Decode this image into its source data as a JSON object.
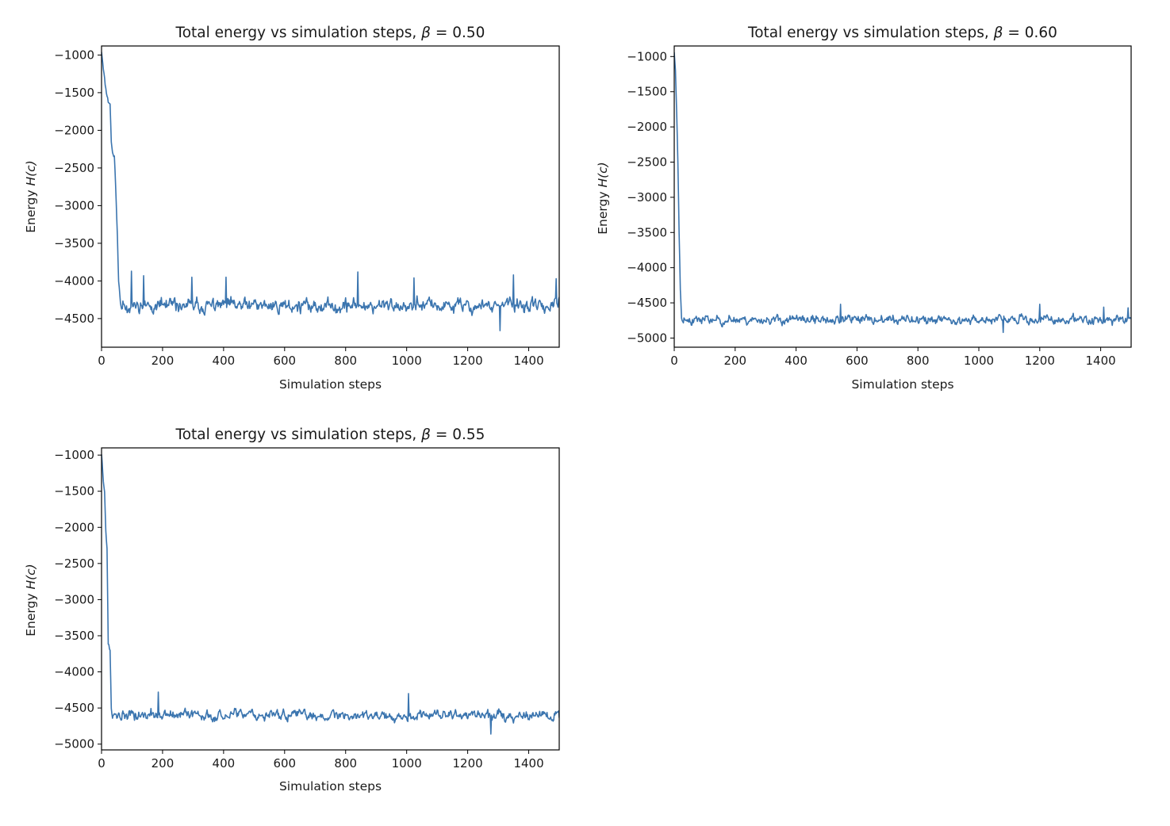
{
  "figure": {
    "series_color": "#3b75af"
  },
  "chart_data": [
    {
      "type": "line",
      "id": "beta-050",
      "title_prefix": "Total energy vs simulation steps, ",
      "beta_symbol": "β",
      "beta_eq": " = 0.50",
      "xlabel": "Simulation steps",
      "ylabel_prefix": "Energy ",
      "ylabel_math": "H(c)",
      "xlim": [
        0,
        1500
      ],
      "ylim": [
        -4880,
        -880
      ],
      "xticks": [
        0,
        200,
        400,
        600,
        800,
        1000,
        1200,
        1400
      ],
      "yticks": [
        -1000,
        -1500,
        -2000,
        -2500,
        -3000,
        -3500,
        -4000,
        -4500
      ],
      "xtick_labels": [
        "0",
        "200",
        "400",
        "600",
        "800",
        "1000",
        "1200",
        "1400"
      ],
      "ytick_labels": [
        "−1000",
        "−1500",
        "−2000",
        "−2500",
        "−3000",
        "−3500",
        "−4000",
        "−4500"
      ],
      "series": [
        {
          "name": "H(c)",
          "generator": "noisy equilibrium trace",
          "x_start": 0,
          "x_end": 1500,
          "step": 2,
          "initial": -950,
          "transient": [
            [
              0,
              -950
            ],
            [
              8,
              -1250
            ],
            [
              14,
              -1450
            ],
            [
              22,
              -1620
            ],
            [
              28,
              -1650
            ],
            [
              32,
              -2150
            ],
            [
              36,
              -2300
            ],
            [
              42,
              -2350
            ],
            [
              46,
              -2700
            ],
            [
              52,
              -3400
            ],
            [
              56,
              -4000
            ],
            [
              62,
              -4300
            ]
          ],
          "equilibrium_mean": -4330,
          "noise_amplitude": 110,
          "spikes": [
            [
              98,
              -3870
            ],
            [
              138,
              -3930
            ],
            [
              295,
              -3950
            ],
            [
              408,
              -3950
            ],
            [
              840,
              -3880
            ],
            [
              1023,
              -3960
            ],
            [
              1350,
              -3920
            ],
            [
              1490,
              -3970
            ],
            [
              1305,
              -4660
            ]
          ],
          "seed": 11
        }
      ]
    },
    {
      "type": "line",
      "id": "beta-060",
      "title_prefix": "Total energy vs simulation steps, ",
      "beta_symbol": "β",
      "beta_eq": " = 0.60",
      "xlabel": "Simulation steps",
      "ylabel_prefix": "Energy ",
      "ylabel_math": "H(c)",
      "xlim": [
        0,
        1500
      ],
      "ylim": [
        -5130,
        -850
      ],
      "xticks": [
        0,
        200,
        400,
        600,
        800,
        1000,
        1200,
        1400
      ],
      "yticks": [
        -1000,
        -1500,
        -2000,
        -2500,
        -3000,
        -3500,
        -4000,
        -4500,
        -5000
      ],
      "xtick_labels": [
        "0",
        "200",
        "400",
        "600",
        "800",
        "1000",
        "1200",
        "1400"
      ],
      "ytick_labels": [
        "−1000",
        "−1500",
        "−2000",
        "−2500",
        "−3000",
        "−3500",
        "−4000",
        "−4500",
        "−5000"
      ],
      "series": [
        {
          "name": "H(c)",
          "generator": "noisy equilibrium trace",
          "x_start": 0,
          "x_end": 1500,
          "step": 2,
          "initial": -930,
          "transient": [
            [
              0,
              -930
            ],
            [
              4,
              -1200
            ],
            [
              8,
              -1800
            ],
            [
              12,
              -2500
            ],
            [
              16,
              -3500
            ],
            [
              20,
              -4300
            ],
            [
              24,
              -4700
            ]
          ],
          "equilibrium_mean": -4740,
          "noise_amplitude": 75,
          "spikes": [
            [
              545,
              -4520
            ],
            [
              1200,
              -4520
            ],
            [
              1410,
              -4560
            ],
            [
              1490,
              -4570
            ],
            [
              1080,
              -4920
            ]
          ],
          "seed": 23
        }
      ]
    },
    {
      "type": "line",
      "id": "beta-055",
      "title_prefix": "Total energy vs simulation steps, ",
      "beta_symbol": "β",
      "beta_eq": " = 0.55",
      "xlabel": "Simulation steps",
      "ylabel_prefix": "Energy ",
      "ylabel_math": "H(c)",
      "xlim": [
        0,
        1500
      ],
      "ylim": [
        -5080,
        -900
      ],
      "xticks": [
        0,
        200,
        400,
        600,
        800,
        1000,
        1200,
        1400
      ],
      "yticks": [
        -1000,
        -1500,
        -2000,
        -2500,
        -3000,
        -3500,
        -4000,
        -4500,
        -5000
      ],
      "xtick_labels": [
        "0",
        "200",
        "400",
        "600",
        "800",
        "1000",
        "1200",
        "1400"
      ],
      "ytick_labels": [
        "−1000",
        "−1500",
        "−2000",
        "−2500",
        "−3000",
        "−3500",
        "−4000",
        "−4500",
        "−5000"
      ],
      "series": [
        {
          "name": "H(c)",
          "generator": "noisy equilibrium trace",
          "x_start": 0,
          "x_end": 1500,
          "step": 2,
          "initial": -980,
          "transient": [
            [
              0,
              -980
            ],
            [
              6,
              -1350
            ],
            [
              10,
              -1500
            ],
            [
              14,
              -2050
            ],
            [
              18,
              -2300
            ],
            [
              22,
              -3600
            ],
            [
              28,
              -3700
            ],
            [
              32,
              -4500
            ]
          ],
          "equilibrium_mean": -4600,
          "noise_amplitude": 85,
          "spikes": [
            [
              185,
              -4280
            ],
            [
              1005,
              -4300
            ],
            [
              1275,
              -4860
            ]
          ],
          "seed": 37
        }
      ]
    }
  ]
}
